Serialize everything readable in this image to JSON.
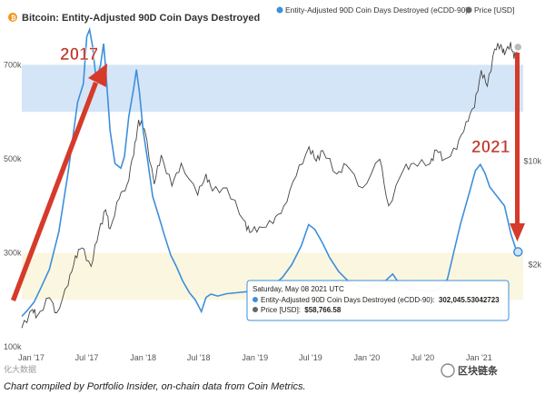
{
  "chart_data": {
    "type": "line",
    "title": "Bitcoin: Entity-Adjusted 90D Coin Days Destroyed",
    "legend_position": "top-right",
    "grid": false,
    "series": [
      {
        "name": "Entity-Adjusted 90D Coin Days Destroyed (eCDD-90)",
        "color": "#3d8fdc",
        "axis": "left",
        "points": [
          [
            "2016-12-01",
            165000
          ],
          [
            "2016-12-20",
            178000
          ],
          [
            "2017-01-10",
            195000
          ],
          [
            "2017-02-01",
            225000
          ],
          [
            "2017-03-01",
            265000
          ],
          [
            "2017-04-01",
            345000
          ],
          [
            "2017-05-01",
            470000
          ],
          [
            "2017-06-01",
            620000
          ],
          [
            "2017-06-20",
            660000
          ],
          [
            "2017-07-01",
            760000
          ],
          [
            "2017-07-10",
            775000
          ],
          [
            "2017-07-20",
            740000
          ],
          [
            "2017-08-01",
            665000
          ],
          [
            "2017-08-15",
            700000
          ],
          [
            "2017-08-25",
            745000
          ],
          [
            "2017-09-01",
            690000
          ],
          [
            "2017-09-15",
            560000
          ],
          [
            "2017-10-01",
            490000
          ],
          [
            "2017-10-20",
            480000
          ],
          [
            "2017-11-01",
            505000
          ],
          [
            "2017-11-15",
            590000
          ],
          [
            "2017-12-01",
            650000
          ],
          [
            "2017-12-10",
            690000
          ],
          [
            "2017-12-20",
            640000
          ],
          [
            "2018-01-01",
            560000
          ],
          [
            "2018-01-15",
            500000
          ],
          [
            "2018-02-01",
            420000
          ],
          [
            "2018-02-20",
            380000
          ],
          [
            "2018-03-10",
            340000
          ],
          [
            "2018-04-01",
            295000
          ],
          [
            "2018-04-20",
            270000
          ],
          [
            "2018-05-10",
            240000
          ],
          [
            "2018-06-01",
            215000
          ],
          [
            "2018-06-20",
            200000
          ],
          [
            "2018-07-10",
            175000
          ],
          [
            "2018-07-25",
            205000
          ],
          [
            "2018-08-10",
            212000
          ],
          [
            "2018-09-01",
            208000
          ],
          [
            "2018-10-01",
            213000
          ],
          [
            "2018-11-01",
            215000
          ],
          [
            "2018-12-01",
            217000
          ],
          [
            "2019-01-01",
            220000
          ],
          [
            "2019-02-01",
            215000
          ],
          [
            "2019-03-01",
            230000
          ],
          [
            "2019-04-01",
            248000
          ],
          [
            "2019-05-01",
            275000
          ],
          [
            "2019-06-01",
            315000
          ],
          [
            "2019-06-25",
            360000
          ],
          [
            "2019-07-15",
            350000
          ],
          [
            "2019-08-10",
            320000
          ],
          [
            "2019-09-01",
            290000
          ],
          [
            "2019-10-01",
            260000
          ],
          [
            "2019-11-01",
            240000
          ],
          [
            "2019-12-01",
            230000
          ],
          [
            "2020-01-01",
            225000
          ],
          [
            "2020-02-01",
            232000
          ],
          [
            "2020-03-01",
            240000
          ],
          [
            "2020-03-25",
            255000
          ],
          [
            "2020-04-15",
            235000
          ],
          [
            "2020-05-20",
            222000
          ],
          [
            "2020-07-01",
            220000
          ],
          [
            "2020-08-01",
            218000
          ],
          [
            "2020-09-01",
            225000
          ],
          [
            "2020-09-20",
            245000
          ],
          [
            "2020-10-10",
            300000
          ],
          [
            "2020-11-01",
            360000
          ],
          [
            "2020-12-01",
            430000
          ],
          [
            "2020-12-20",
            475000
          ],
          [
            "2021-01-05",
            488000
          ],
          [
            "2021-01-20",
            470000
          ],
          [
            "2021-02-05",
            440000
          ],
          [
            "2021-03-01",
            420000
          ],
          [
            "2021-03-25",
            400000
          ],
          [
            "2021-04-15",
            340000
          ],
          [
            "2021-04-30",
            310000
          ],
          [
            "2021-05-08",
            302045.53
          ]
        ]
      },
      {
        "name": "Price [USD]",
        "color": "#444444",
        "axis": "right",
        "points": [
          [
            "2016-12-01",
            750
          ],
          [
            "2017-01-05",
            1000
          ],
          [
            "2017-01-20",
            900
          ],
          [
            "2017-03-01",
            1200
          ],
          [
            "2017-03-25",
            950
          ],
          [
            "2017-05-01",
            1450
          ],
          [
            "2017-05-25",
            2300
          ],
          [
            "2017-06-15",
            2600
          ],
          [
            "2017-07-15",
            1950
          ],
          [
            "2017-08-10",
            3400
          ],
          [
            "2017-09-01",
            4700
          ],
          [
            "2017-09-15",
            3500
          ],
          [
            "2017-10-15",
            5600
          ],
          [
            "2017-11-10",
            7000
          ],
          [
            "2017-12-01",
            11000
          ],
          [
            "2017-12-17",
            19000
          ],
          [
            "2018-01-05",
            16500
          ],
          [
            "2018-02-06",
            7000
          ],
          [
            "2018-03-01",
            11000
          ],
          [
            "2018-04-05",
            6800
          ],
          [
            "2018-05-05",
            9700
          ],
          [
            "2018-06-28",
            5900
          ],
          [
            "2018-07-25",
            8200
          ],
          [
            "2018-08-15",
            6300
          ],
          [
            "2018-10-01",
            6600
          ],
          [
            "2018-11-25",
            4000
          ],
          [
            "2018-12-15",
            3300
          ],
          [
            "2019-01-15",
            3600
          ],
          [
            "2019-03-01",
            3800
          ],
          [
            "2019-04-05",
            5000
          ],
          [
            "2019-05-15",
            7900
          ],
          [
            "2019-06-26",
            12500
          ],
          [
            "2019-07-20",
            10000
          ],
          [
            "2019-08-10",
            11800
          ],
          [
            "2019-09-25",
            8200
          ],
          [
            "2019-10-26",
            9400
          ],
          [
            "2019-12-18",
            6600
          ],
          [
            "2020-02-12",
            10300
          ],
          [
            "2020-03-12",
            5000
          ],
          [
            "2020-04-30",
            8800
          ],
          [
            "2020-06-01",
            9700
          ],
          [
            "2020-07-25",
            9600
          ],
          [
            "2020-08-15",
            11900
          ],
          [
            "2020-09-10",
            10300
          ],
          [
            "2020-10-20",
            12000
          ],
          [
            "2020-11-20",
            18500
          ],
          [
            "2020-12-17",
            23000
          ],
          [
            "2021-01-08",
            41000
          ],
          [
            "2021-01-28",
            32000
          ],
          [
            "2021-02-21",
            57000
          ],
          [
            "2021-03-13",
            61000
          ],
          [
            "2021-03-25",
            52000
          ],
          [
            "2021-04-14",
            63500
          ],
          [
            "2021-04-25",
            49000
          ],
          [
            "2021-05-08",
            58766.58
          ]
        ]
      }
    ],
    "x_range": [
      "2016-12-01",
      "2021-05-25"
    ],
    "x_ticks": [
      "Jan '17",
      "Jul '17",
      "Jan '18",
      "Jul '18",
      "Jan '19",
      "Jul '19",
      "Jan '20",
      "Jul '20",
      "Jan '21"
    ],
    "y_left_range": [
      100000,
      780000
    ],
    "y_left_ticks": [
      "100k",
      "300k",
      "500k",
      "700k"
    ],
    "y_right_scale": "log",
    "y_right_range": [
      560,
      80000
    ],
    "y_right_ticks": [
      "$2k",
      "$10k"
    ],
    "bands": [
      {
        "axis": "left",
        "from": 600000,
        "to": 700000,
        "color": "#d5e5f8"
      },
      {
        "axis": "left",
        "from": 200000,
        "to": 300000,
        "color": "#fbf6df"
      }
    ],
    "annotations": [
      "2017",
      "2021"
    ],
    "tooltip": {
      "date": "Saturday, May 08 2021 UTC",
      "rows": [
        {
          "label": "Entity-Adjusted 90D Coin Days Destroyed (eCDD-90):",
          "value": "302,045.53042723",
          "color": "#3d8fdc"
        },
        {
          "label": "Price [USD]:",
          "value": "$58,766.58",
          "color": "#666666"
        }
      ]
    }
  },
  "caption": "Chart compiled by Portfolio Insider, on-chain data from Coin Metrics.",
  "watermark_left": "化大数据",
  "watermark_right": "区块链条"
}
